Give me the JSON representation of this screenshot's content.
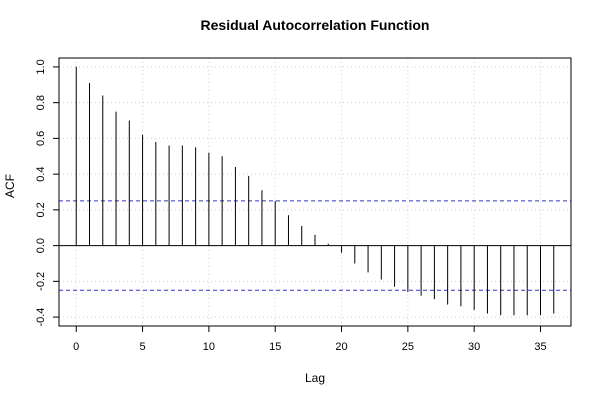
{
  "chart_data": {
    "type": "bar",
    "title": "Residual Autocorrelation Function",
    "xlabel": "Lag",
    "ylabel": "ACF",
    "xlim": [
      -1.3,
      37.3
    ],
    "ylim": [
      -0.45,
      1.05
    ],
    "x_ticks": [
      0,
      5,
      10,
      15,
      20,
      25,
      30,
      35
    ],
    "y_ticks": [
      -0.4,
      -0.2,
      0.0,
      0.2,
      0.4,
      0.6,
      0.8,
      1.0
    ],
    "y_tick_labels": [
      "-0.4",
      "-0.2",
      "0.0",
      "0.2",
      "0.4",
      "0.6",
      "0.8",
      "1.0"
    ],
    "grid": true,
    "colors": {
      "bars": "#000000",
      "confidence": "#3333cc",
      "grid": "#d0d0d0"
    },
    "confidence_bounds": [
      0.25,
      -0.25
    ],
    "series": [
      {
        "x": [
          0,
          1,
          2,
          3,
          4,
          5,
          6,
          7,
          8,
          9,
          10,
          11,
          12,
          13,
          14,
          15,
          16,
          17,
          18,
          19,
          20,
          21,
          22,
          23,
          24,
          25,
          26,
          27,
          28,
          29,
          30,
          31,
          32,
          33,
          34,
          35,
          36
        ],
        "values": [
          1.0,
          0.91,
          0.84,
          0.75,
          0.7,
          0.62,
          0.58,
          0.56,
          0.56,
          0.55,
          0.52,
          0.5,
          0.44,
          0.39,
          0.31,
          0.25,
          0.17,
          0.11,
          0.06,
          0.01,
          -0.04,
          -0.1,
          -0.15,
          -0.19,
          -0.23,
          -0.26,
          -0.28,
          -0.3,
          -0.33,
          -0.34,
          -0.36,
          -0.38,
          -0.39,
          -0.39,
          -0.39,
          -0.39,
          -0.38
        ]
      }
    ]
  }
}
